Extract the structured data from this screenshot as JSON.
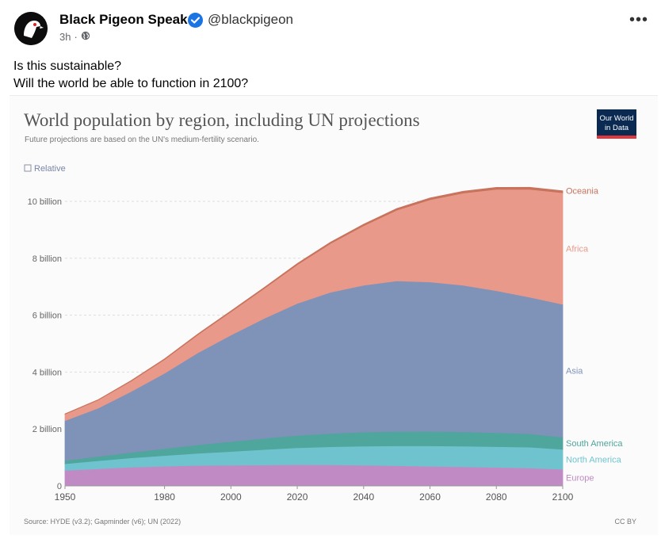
{
  "post": {
    "author": "Black Pigeon Speaks",
    "handle": "@blackpigeon",
    "time": "3h",
    "time_separator": "·",
    "more_label": "•••",
    "text_line1": "Is this sustainable?",
    "text_line2": "Will the world be able to function in 2100?"
  },
  "chart_ui": {
    "relative_label": "Relative",
    "logo_line1": "Our World",
    "logo_line2": "in Data",
    "source": "Source: HYDE (v3.2); Gapminder (v6); UN (2022)",
    "license": "CC BY"
  },
  "colors": {
    "europe": "#c08bc4",
    "north_america": "#6fc3cf",
    "south_america": "#4ea69d",
    "asia": "#7f92b8",
    "africa": "#e9998a",
    "oceania": "#c8735d",
    "verified": "#1b74e4",
    "logo_bg": "#0a2a52",
    "logo_accent": "#e0363c"
  },
  "chart_data": {
    "type": "area",
    "title": "World population by region, including UN projections",
    "subtitle": "Future projections are based on the UN's medium-fertility scenario.",
    "xlabel": "",
    "ylabel": "",
    "xlim": [
      1950,
      2100
    ],
    "ylim": [
      0,
      10000000000
    ],
    "x_ticks": [
      1950,
      1980,
      2000,
      2020,
      2040,
      2060,
      2080,
      2100
    ],
    "y_ticks": [
      {
        "value": 0,
        "label": "0"
      },
      {
        "value": 2000000000,
        "label": "2 billion"
      },
      {
        "value": 4000000000,
        "label": "4 billion"
      },
      {
        "value": 6000000000,
        "label": "6 billion"
      },
      {
        "value": 8000000000,
        "label": "8 billion"
      },
      {
        "value": 10000000000,
        "label": "10 billion"
      }
    ],
    "x": [
      1950,
      1960,
      1970,
      1980,
      1990,
      2000,
      2010,
      2020,
      2030,
      2040,
      2050,
      2060,
      2070,
      2080,
      2090,
      2100
    ],
    "stacked": true,
    "series": [
      {
        "name": "Europe",
        "color_key": "europe",
        "values": [
          550000000,
          605000000,
          657000000,
          694000000,
          721000000,
          726000000,
          736000000,
          747000000,
          741000000,
          728000000,
          710000000,
          692000000,
          672000000,
          652000000,
          633000000,
          586000000
        ]
      },
      {
        "name": "North America",
        "color_key": "north_america",
        "values": [
          228000000,
          280000000,
          329000000,
          373000000,
          425000000,
          483000000,
          542000000,
          592000000,
          636000000,
          671000000,
          697000000,
          714000000,
          724000000,
          728000000,
          728000000,
          700000000
        ]
      },
      {
        "name": "South America",
        "color_key": "south_america",
        "values": [
          114000000,
          148000000,
          193000000,
          242000000,
          297000000,
          349000000,
          394000000,
          434000000,
          468000000,
          492000000,
          505000000,
          510000000,
          505000000,
          492000000,
          472000000,
          426000000
        ]
      },
      {
        "name": "Asia",
        "color_key": "asia",
        "values": [
          1400000000,
          1700000000,
          2140000000,
          2650000000,
          3230000000,
          3740000000,
          4210000000,
          4640000000,
          4960000000,
          5160000000,
          5290000000,
          5250000000,
          5150000000,
          4990000000,
          4800000000,
          4670000000
        ]
      },
      {
        "name": "Africa",
        "color_key": "africa",
        "values": [
          228000000,
          283000000,
          365000000,
          482000000,
          637000000,
          818000000,
          1050000000,
          1360000000,
          1710000000,
          2090000000,
          2490000000,
          2890000000,
          3240000000,
          3560000000,
          3790000000,
          3920000000
        ]
      },
      {
        "name": "Oceania",
        "color_key": "oceania",
        "values": [
          13000000,
          16000000,
          20000000,
          23000000,
          27000000,
          31000000,
          37000000,
          43000000,
          48000000,
          53000000,
          57000000,
          61000000,
          64000000,
          67000000,
          69000000,
          69000000
        ]
      }
    ],
    "legend_placement": "right-end-labels",
    "grid": "horizontal-dashed"
  }
}
